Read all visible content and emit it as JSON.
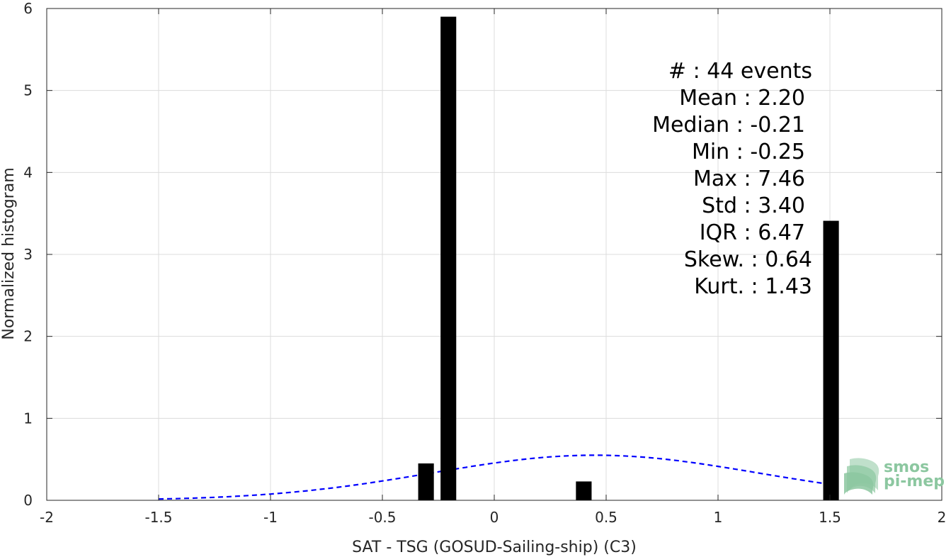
{
  "chart_data": {
    "type": "bar",
    "xlabel": "SAT - TSG (GOSUD-Sailing-ship) (C3)",
    "ylabel": "Normalized histogram",
    "xlim": [
      -2,
      2
    ],
    "ylim": [
      0,
      6
    ],
    "xticks": [
      -2,
      -1.5,
      -1,
      -0.5,
      0,
      0.5,
      1,
      1.5,
      2
    ],
    "xtick_labels": [
      "-2",
      "-1.5",
      "-1",
      "-0.5",
      "0",
      "0.5",
      "1",
      "1.5",
      "2"
    ],
    "yticks": [
      0,
      1,
      2,
      3,
      4,
      5,
      6
    ],
    "ytick_labels": [
      "0",
      "1",
      "2",
      "3",
      "4",
      "5",
      "6"
    ],
    "grid": true,
    "bin_width": 0.07,
    "bars": [
      {
        "x": -0.305,
        "y": 0.45
      },
      {
        "x": -0.205,
        "y": 5.9
      },
      {
        "x": 0.4,
        "y": 0.23
      },
      {
        "x": 1.505,
        "y": 3.41
      }
    ],
    "fit_curve": {
      "style": "dashed",
      "color": "#0000ff",
      "mean": 0.45,
      "std": 0.73,
      "peak": 0.55,
      "x_range": [
        -1.5,
        1.5
      ]
    },
    "bar_color": "#000000",
    "stats": [
      {
        "label": "#  : 44 events"
      },
      {
        "label": "Mean : 2.20"
      },
      {
        "label": "Median : -0.21"
      },
      {
        "label": "Min : -0.25"
      },
      {
        "label": "Max : 7.46"
      },
      {
        "label": "Std : 3.40"
      },
      {
        "label": "IQR : 6.47"
      },
      {
        "label": "Skew. : 0.64"
      },
      {
        "label": "Kurt. : 1.43"
      }
    ]
  },
  "logo": {
    "line1": "smos",
    "line2": "pi-mep",
    "color": "#8cc7a0"
  }
}
